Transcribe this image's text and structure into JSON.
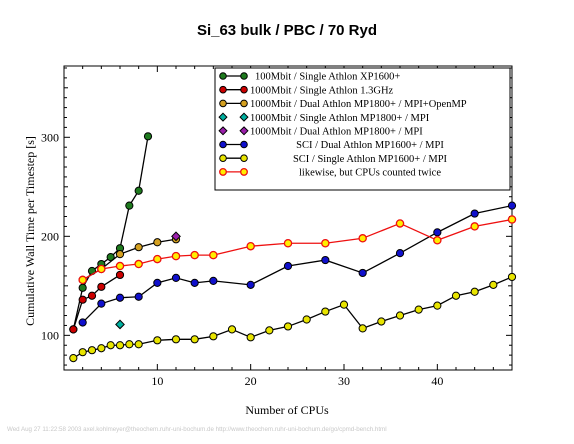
{
  "chart_data": {
    "type": "line",
    "title": "Si_63 bulk / PBC / 70 Ryd",
    "xlabel": "Number of CPUs",
    "ylabel": "Cumulative Wall Time per Timestep [s]",
    "xlim": [
      0,
      48
    ],
    "ylim": [
      65,
      372
    ],
    "xticks": [
      10,
      20,
      30,
      40
    ],
    "yticks": [
      100,
      200,
      300
    ],
    "grid": false,
    "legend_position": "top-right",
    "series": [
      {
        "name": "100Mbit / Single Athlon XP1600+",
        "color": "#1e7a1e",
        "marker": "circle",
        "x": [
          1,
          2,
          3,
          4,
          5,
          6,
          7,
          8,
          9
        ],
        "y": [
          106,
          148,
          165,
          172,
          179,
          188,
          231,
          246,
          301
        ]
      },
      {
        "name": "1000Mbit / Single Athlon 1.3GHz",
        "color": "#cc0000",
        "marker": "circle",
        "x": [
          1,
          2,
          3,
          4,
          6
        ],
        "y": [
          106,
          136,
          140,
          149,
          161
        ]
      },
      {
        "name": "1000Mbit / Dual Athlon MP1800+ / MPI+OpenMP",
        "color": "#d4a020",
        "marker": "circle",
        "x": [
          2,
          4,
          6,
          8,
          10,
          12
        ],
        "y": [
          156,
          167,
          182,
          189,
          194,
          197
        ]
      },
      {
        "name": "1000Mbit / Single Athlon MP1800+ / MPI",
        "color": "#00b0a0",
        "marker": "diamond",
        "x": [
          6
        ],
        "y": [
          111
        ]
      },
      {
        "name": "1000Mbit / Dual Athlon MP1800+ / MPI",
        "color": "#9a1faa",
        "marker": "diamond",
        "x": [
          12
        ],
        "y": [
          200
        ]
      },
      {
        "name": "SCI / Dual Athlon MP1600+ / MPI",
        "color": "#1010cc",
        "marker": "circle",
        "x": [
          2,
          4,
          6,
          8,
          10,
          12,
          14,
          16,
          20,
          24,
          28,
          32,
          36,
          40,
          44,
          48
        ],
        "y": [
          113,
          132,
          138,
          139,
          153,
          158,
          153,
          155,
          151,
          170,
          176,
          163,
          183,
          204,
          223,
          231
        ]
      },
      {
        "name": "SCI / Single Athlon MP1600+ / MPI",
        "color": "#e8e400",
        "marker": "circle",
        "x": [
          1,
          2,
          3,
          4,
          5,
          6,
          7,
          8,
          10,
          12,
          14,
          16,
          18,
          20,
          22,
          24,
          26,
          28,
          30,
          32,
          34,
          36,
          38,
          40,
          42,
          44,
          46,
          48
        ],
        "y": [
          77,
          83,
          85,
          87,
          90,
          90,
          91,
          91,
          95,
          96,
          96,
          99,
          106,
          98,
          105,
          109,
          116,
          124,
          131,
          107,
          114,
          120,
          126,
          130,
          140,
          144,
          151,
          159
        ]
      },
      {
        "name": "likewise, but CPUs counted twice",
        "color": "#ee1010",
        "marker": "circle-open-yellow",
        "x": [
          2,
          4,
          6,
          8,
          10,
          12,
          14,
          16,
          20,
          24,
          28,
          32,
          36,
          40,
          44,
          48
        ],
        "y": [
          156,
          167,
          170,
          172,
          177,
          180,
          181,
          181,
          190,
          193,
          193,
          198,
          213,
          196,
          210,
          217
        ]
      }
    ]
  },
  "footer_text": "Wed Aug 27 11:22:58 2003  axel.kohlmeyer@theochem.ruhr-uni-bochum.de  http://www.theochem.ruhr-uni-bochum.de/go/cpmd-bench.html"
}
